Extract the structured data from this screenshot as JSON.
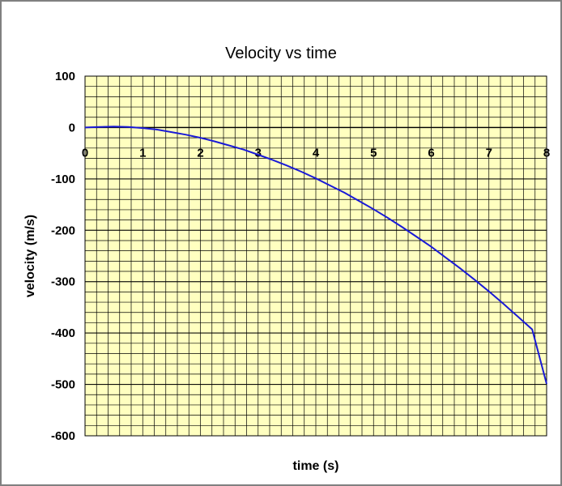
{
  "chart_data": {
    "type": "line",
    "title": "Velocity vs time",
    "xlabel": "time (s)",
    "ylabel": "velocity (m/s)",
    "xlim": [
      0,
      8
    ],
    "ylim": [
      -600,
      100
    ],
    "x_ticks": [
      0,
      1,
      2,
      3,
      4,
      5,
      6,
      7,
      8
    ],
    "y_ticks": [
      100,
      0,
      -100,
      -200,
      -300,
      -400,
      -500,
      -600
    ],
    "x_minor_step": 0.2,
    "y_minor_step": 20,
    "grid": true,
    "legend": "none",
    "plot_background": "#ffffc0",
    "grid_color": "#000000",
    "series": [
      {
        "color": "#1a1ad6",
        "x": [
          0,
          0.25,
          0.5,
          0.75,
          1,
          1.25,
          1.5,
          1.75,
          2,
          2.25,
          2.5,
          2.75,
          3,
          3.25,
          3.5,
          3.75,
          4,
          4.25,
          4.5,
          4.75,
          5,
          5.25,
          5.5,
          5.75,
          6,
          6.25,
          6.5,
          6.75,
          7,
          7.25,
          7.5,
          7.75,
          8
        ],
        "y": [
          0,
          1,
          2,
          1,
          -1,
          -4,
          -9,
          -14,
          -20,
          -27,
          -35,
          -43,
          -53,
          -63,
          -74,
          -86,
          -99,
          -113,
          -127,
          -143,
          -159,
          -176,
          -194,
          -213,
          -232,
          -253,
          -274,
          -296,
          -319,
          -343,
          -368,
          -393,
          -499
        ]
      }
    ]
  }
}
